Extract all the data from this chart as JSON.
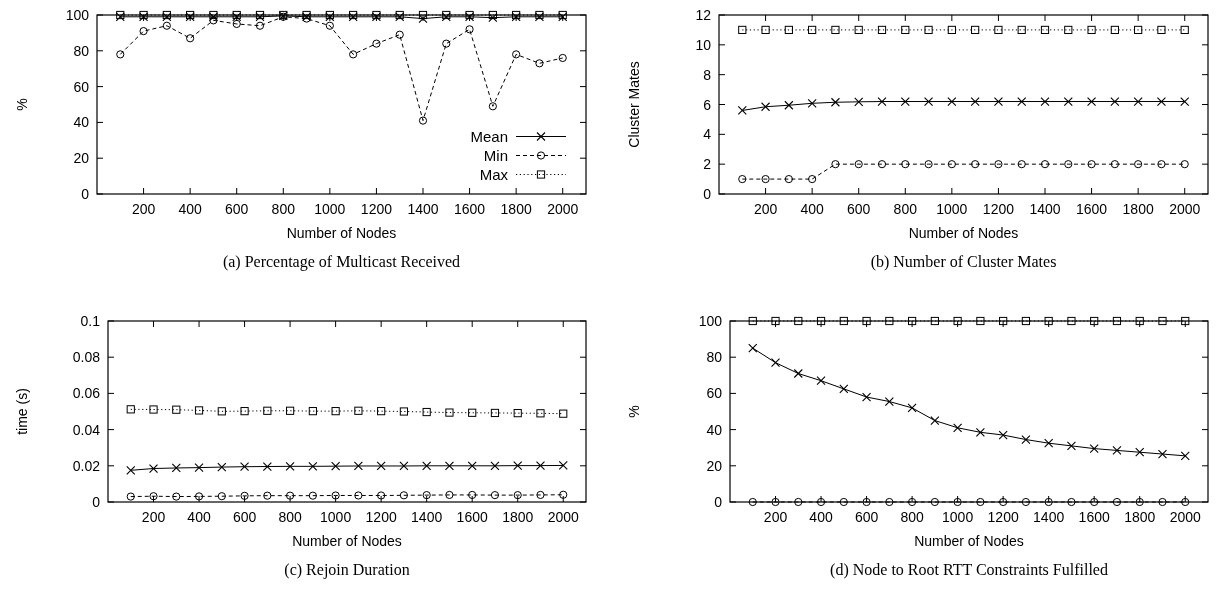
{
  "chart_data": [
    {
      "type": "line",
      "title": "(a) Percentage of Multicast Received",
      "xlabel": "Number of Nodes",
      "ylabel": "%",
      "xlim": [
        0,
        2100
      ],
      "xticks": [
        200,
        400,
        600,
        800,
        1000,
        1200,
        1400,
        1600,
        1800,
        2000
      ],
      "ylim": [
        0,
        100
      ],
      "yticks": [
        0,
        20,
        40,
        60,
        80,
        100
      ],
      "grid": false,
      "legend": "bottom right",
      "x": [
        100,
        200,
        300,
        400,
        500,
        600,
        700,
        800,
        900,
        1000,
        1100,
        1200,
        1300,
        1400,
        1500,
        1600,
        1700,
        1800,
        1900,
        2000
      ],
      "series": [
        {
          "name": "Mean",
          "color": "#000000",
          "marker": "cross",
          "line_style": "solid",
          "values": [
            99,
            99,
            99,
            99,
            99,
            99,
            99,
            99.5,
            99,
            99,
            99,
            99,
            99,
            98,
            99,
            99,
            98.5,
            99,
            99,
            99
          ]
        },
        {
          "name": "Min",
          "color": "#000000",
          "marker": "circle",
          "line_style": "dashed",
          "values": [
            78,
            91,
            94,
            87,
            97,
            95,
            94,
            99,
            98,
            94,
            78,
            84,
            89,
            41,
            84,
            92,
            49,
            78,
            73,
            76
          ]
        },
        {
          "name": "Max",
          "color": "#000000",
          "marker": "square",
          "line_style": "dotted",
          "values": [
            100,
            100,
            100,
            100,
            100,
            100,
            100,
            100,
            100,
            100,
            100,
            100,
            100,
            100,
            100,
            100,
            100,
            100,
            100,
            100
          ]
        }
      ]
    },
    {
      "type": "line",
      "title": "(b) Number of Cluster Mates",
      "xlabel": "Number of Nodes",
      "ylabel": "Cluster Mates",
      "xlim": [
        0,
        2100
      ],
      "xticks": [
        200,
        400,
        600,
        800,
        1000,
        1200,
        1400,
        1600,
        1800,
        2000
      ],
      "ylim": [
        0,
        12
      ],
      "yticks": [
        0,
        2,
        4,
        6,
        8,
        10,
        12
      ],
      "grid": false,
      "x": [
        100,
        200,
        300,
        400,
        500,
        600,
        700,
        800,
        900,
        1000,
        1100,
        1200,
        1300,
        1400,
        1500,
        1600,
        1700,
        1800,
        1900,
        2000
      ],
      "series": [
        {
          "color": "#000000",
          "marker": "cross",
          "line_style": "solid",
          "values": [
            5.6,
            5.85,
            5.95,
            6.08,
            6.15,
            6.18,
            6.2,
            6.2,
            6.2,
            6.2,
            6.2,
            6.2,
            6.2,
            6.2,
            6.2,
            6.2,
            6.2,
            6.2,
            6.2,
            6.2
          ]
        },
        {
          "color": "#000000",
          "marker": "circle",
          "line_style": "dashed",
          "values": [
            1,
            1,
            1,
            1,
            2,
            2,
            2,
            2,
            2,
            2,
            2,
            2,
            2,
            2,
            2,
            2,
            2,
            2,
            2,
            2
          ]
        },
        {
          "color": "#000000",
          "marker": "square",
          "line_style": "dotted",
          "values": [
            11,
            11,
            11,
            11,
            11,
            11,
            11,
            11,
            11,
            11,
            11,
            11,
            11,
            11,
            11,
            11,
            11,
            11,
            11,
            11
          ]
        }
      ]
    },
    {
      "type": "line",
      "title": "(c) Rejoin Duration",
      "xlabel": "Number of Nodes",
      "ylabel": "time (s)",
      "xlim": [
        0,
        2100
      ],
      "xticks": [
        200,
        400,
        600,
        800,
        1000,
        1200,
        1400,
        1600,
        1800,
        2000
      ],
      "ylim": [
        0,
        0.1
      ],
      "yticks": [
        0,
        0.02,
        0.04,
        0.06,
        0.08,
        0.1
      ],
      "grid": false,
      "x": [
        100,
        200,
        300,
        400,
        500,
        600,
        700,
        800,
        900,
        1000,
        1100,
        1200,
        1300,
        1400,
        1500,
        1600,
        1700,
        1800,
        1900,
        2000
      ],
      "series": [
        {
          "color": "#000000",
          "marker": "cross",
          "line_style": "solid",
          "values": [
            0.0175,
            0.0185,
            0.0188,
            0.019,
            0.0193,
            0.0195,
            0.0196,
            0.0197,
            0.0197,
            0.0198,
            0.0199,
            0.0199,
            0.0199,
            0.02,
            0.02,
            0.02,
            0.02,
            0.0201,
            0.0201,
            0.0202
          ]
        },
        {
          "color": "#000000",
          "marker": "circle",
          "line_style": "dashed",
          "values": [
            0.003,
            0.0032,
            0.003,
            0.0031,
            0.0032,
            0.0034,
            0.0035,
            0.0035,
            0.0035,
            0.0036,
            0.0036,
            0.0036,
            0.0037,
            0.0038,
            0.0039,
            0.0039,
            0.0038,
            0.0038,
            0.0039,
            0.004
          ]
        },
        {
          "color": "#000000",
          "marker": "square",
          "line_style": "dotted",
          "values": [
            0.0512,
            0.0511,
            0.051,
            0.0506,
            0.0501,
            0.0502,
            0.0504,
            0.0504,
            0.0502,
            0.0502,
            0.0504,
            0.0502,
            0.05,
            0.0497,
            0.0494,
            0.0493,
            0.0492,
            0.0491,
            0.049,
            0.0488
          ]
        }
      ]
    },
    {
      "type": "line",
      "title": "(d) Node to Root RTT Constraints Fulfilled",
      "xlabel": "Number of Nodes",
      "ylabel": "%",
      "xlim": [
        0,
        2100
      ],
      "xticks": [
        200,
        400,
        600,
        800,
        1000,
        1200,
        1400,
        1600,
        1800,
        2000
      ],
      "ylim": [
        0,
        100
      ],
      "yticks": [
        0,
        20,
        40,
        60,
        80,
        100
      ],
      "grid": false,
      "x": [
        100,
        200,
        300,
        400,
        500,
        600,
        700,
        800,
        900,
        1000,
        1100,
        1200,
        1300,
        1400,
        1500,
        1600,
        1700,
        1800,
        1900,
        2000
      ],
      "series": [
        {
          "color": "#000000",
          "marker": "cross",
          "line_style": "solid",
          "values": [
            85,
            77,
            71,
            67,
            62.5,
            58,
            55.5,
            52,
            45,
            41,
            38.5,
            37,
            34.5,
            32.5,
            31,
            29.5,
            28.5,
            27.5,
            26.5,
            25.5
          ]
        },
        {
          "color": "#000000",
          "marker": "circle",
          "line_style": "dashed",
          "values": [
            0,
            0,
            0,
            0,
            0,
            0,
            0,
            0,
            0,
            0,
            0,
            0,
            0,
            0,
            0,
            0,
            0,
            0,
            0,
            0
          ]
        },
        {
          "color": "#000000",
          "marker": "square",
          "line_style": "dotted",
          "values": [
            100,
            100,
            100,
            100,
            100,
            100,
            100,
            100,
            100,
            100,
            100,
            100,
            100,
            100,
            100,
            100,
            100,
            100,
            100,
            100
          ]
        }
      ]
    }
  ]
}
